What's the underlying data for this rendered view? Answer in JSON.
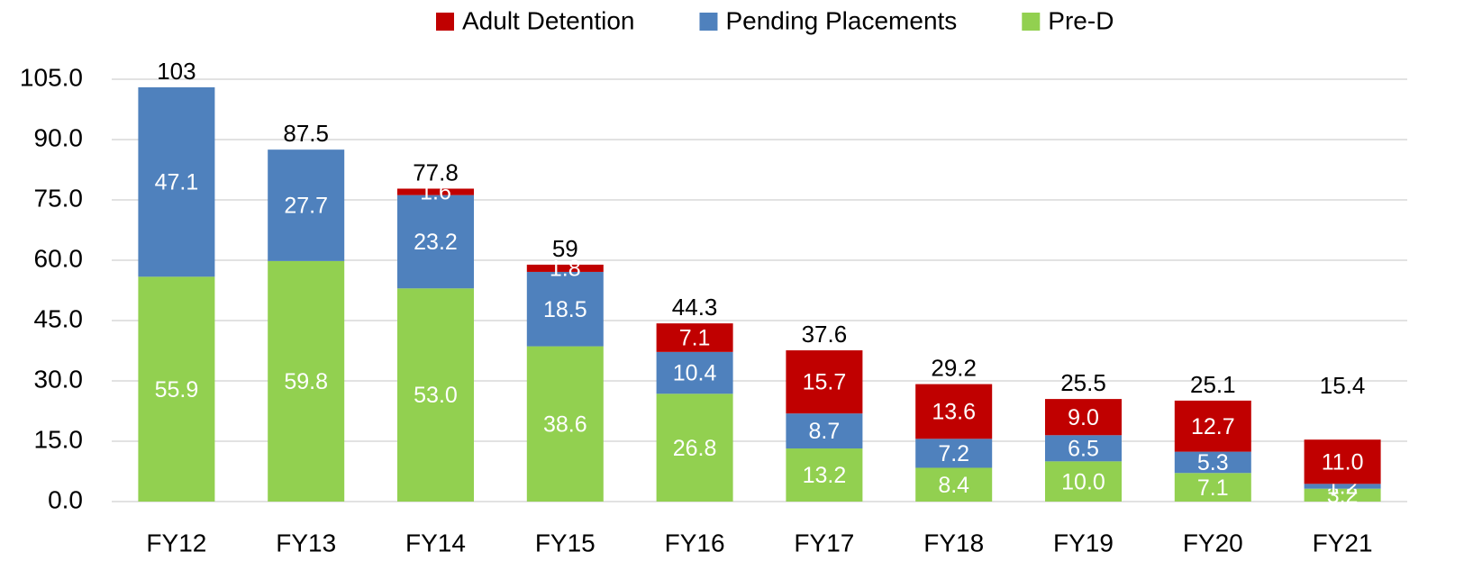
{
  "chart_data": {
    "type": "stacked_bar",
    "categories": [
      "FY12",
      "FY13",
      "FY14",
      "FY15",
      "FY16",
      "FY17",
      "FY18",
      "FY19",
      "FY20",
      "FY21"
    ],
    "series": [
      {
        "name": "Adult Detention",
        "color": "#c00000",
        "values": [
          null,
          null,
          1.6,
          1.8,
          7.1,
          15.7,
          13.6,
          9.0,
          12.7,
          11.0
        ],
        "value_labels": [
          null,
          null,
          "1.6",
          "1.8",
          "7.1",
          "15.7",
          "13.6",
          "9.0",
          "12.7",
          "11.0"
        ]
      },
      {
        "name": "Pending Placements",
        "color": "#4f81bd",
        "values": [
          47.1,
          27.7,
          23.2,
          18.5,
          10.4,
          8.7,
          7.2,
          6.5,
          5.3,
          1.2
        ]
      },
      {
        "name": "Pre-D",
        "color": "#92d050",
        "values": [
          55.9,
          59.8,
          53.0,
          38.6,
          26.8,
          13.2,
          8.4,
          10.0,
          7.1,
          3.2
        ],
        "value_labels": [
          "55.9",
          "59.8",
          "53.0",
          "38.6",
          "26.8",
          "13.2",
          "8.4",
          "10.0",
          "7.1",
          "3.2"
        ]
      }
    ],
    "totals": [
      103,
      87.5,
      77.8,
      59,
      44.3,
      37.6,
      29.2,
      25.5,
      25.1,
      15.4
    ],
    "ylim": [
      0,
      105
    ],
    "yticks": [
      {
        "value": 0,
        "label": "0.0"
      },
      {
        "value": 15,
        "label": "15.0"
      },
      {
        "value": 30,
        "label": "30.0"
      },
      {
        "value": 45,
        "label": "45.0"
      },
      {
        "value": 60,
        "label": "60.0"
      },
      {
        "value": 75,
        "label": "75.0"
      },
      {
        "value": 90,
        "label": "90.0"
      },
      {
        "value": 105,
        "label": "105.0"
      }
    ],
    "grid": true,
    "legend": "top"
  }
}
